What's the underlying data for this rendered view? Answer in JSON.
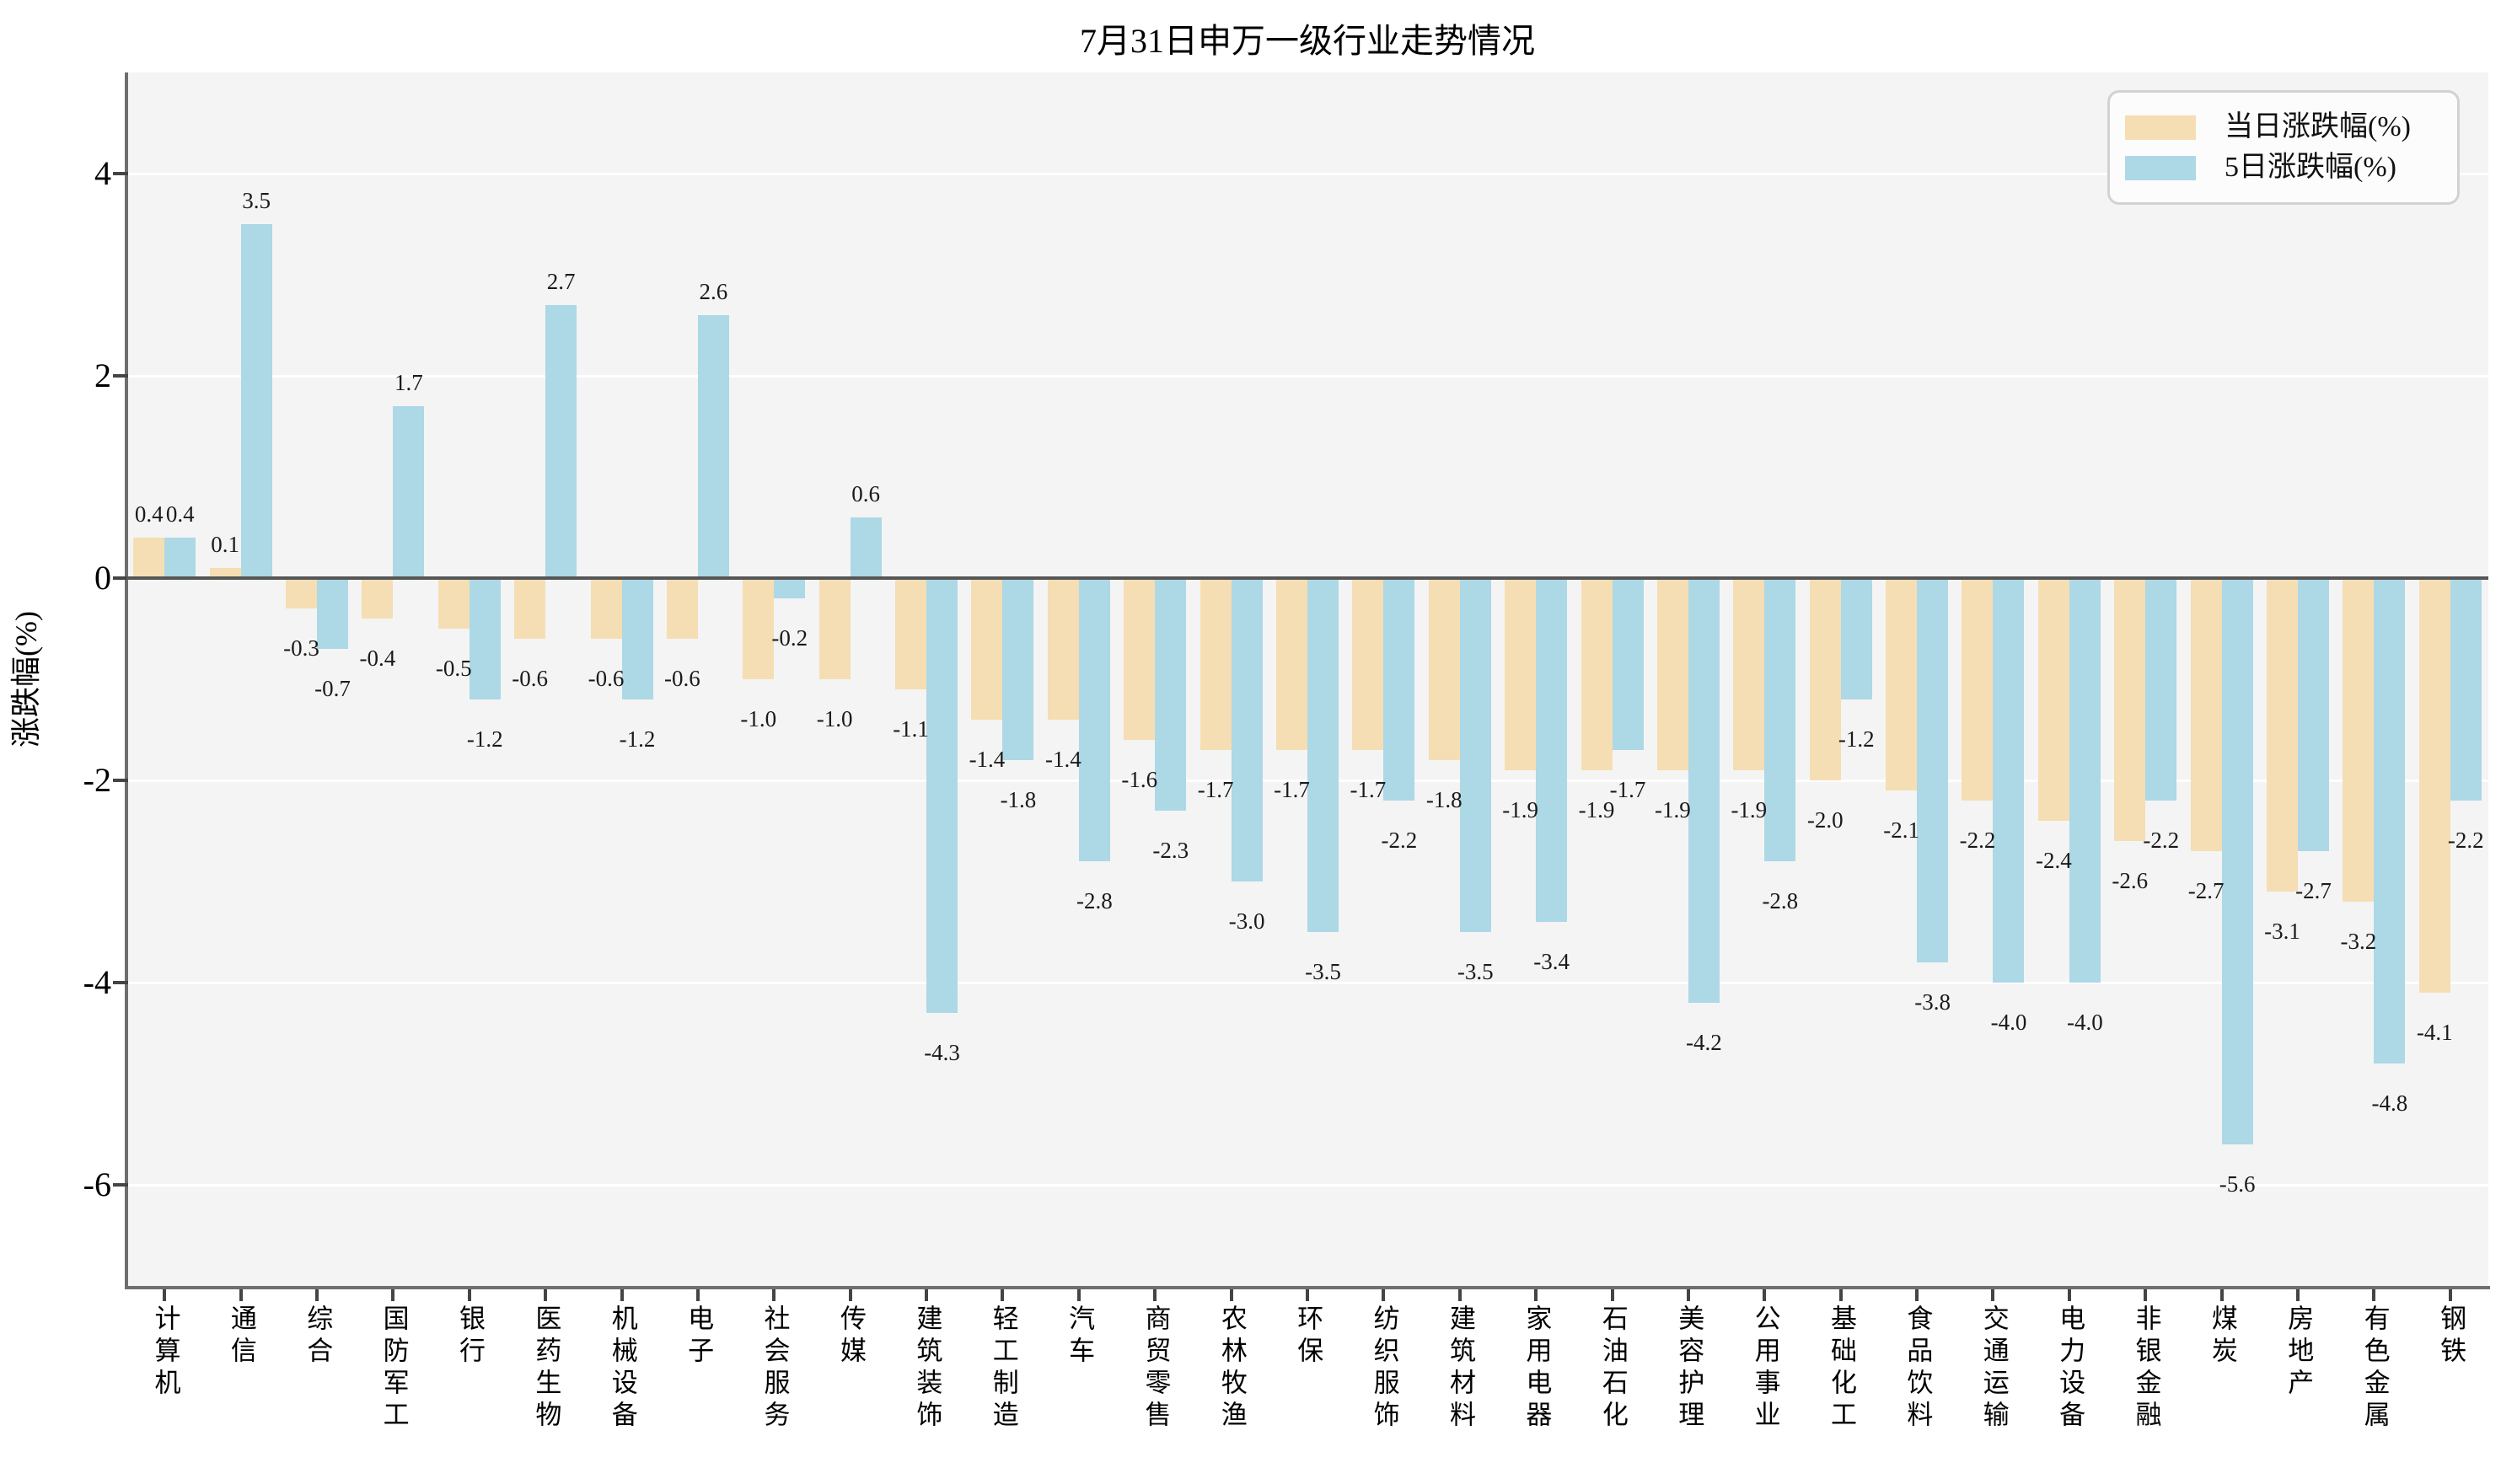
{
  "title": "7月31日申万一级行业走势情况",
  "ylabel": "涨跌幅(%)",
  "legend": {
    "daily_label": "当日涨跌幅(%)",
    "five_day_label": "5日涨跌幅(%)"
  },
  "colors": {
    "daily": "#F5DEB3",
    "five_day": "#ADD8E6",
    "plot_background": "#F4F4F4",
    "gridline": "#FFFFFF",
    "spine": "#6E6E6E",
    "zero_line": "#565656"
  },
  "chart_data": {
    "type": "bar",
    "title": "7月31日申万一级行业走势情况",
    "xlabel": "",
    "ylabel": "涨跌幅(%)",
    "ylim": [
      -7,
      5
    ],
    "y_ticks": [
      4,
      2,
      0,
      -2,
      -4,
      -6
    ],
    "grid": true,
    "legend_position": "upper right",
    "categories": [
      "计算机",
      "通信",
      "综合",
      "国防军工",
      "银行",
      "医药生物",
      "机械设备",
      "电子",
      "社会服务",
      "传媒",
      "建筑装饰",
      "轻工制造",
      "汽车",
      "商贸零售",
      "农林牧渔",
      "环保",
      "纺织服饰",
      "建筑材料",
      "家用电器",
      "石油石化",
      "美容护理",
      "公用事业",
      "基础化工",
      "食品饮料",
      "交通运输",
      "电力设备",
      "非银金融",
      "煤炭",
      "房地产",
      "有色金属",
      "钢铁"
    ],
    "series": [
      {
        "name": "当日涨跌幅(%)",
        "color": "#F5DEB3",
        "values": [
          0.4,
          0.1,
          -0.3,
          -0.4,
          -0.5,
          -0.6,
          -0.6,
          -0.6,
          -1.0,
          -1.0,
          -1.1,
          -1.4,
          -1.4,
          -1.6,
          -1.7,
          -1.7,
          -1.7,
          -1.8,
          -1.9,
          -1.9,
          -1.9,
          -1.9,
          -2.0,
          -2.1,
          -2.2,
          -2.4,
          -2.6,
          -2.7,
          -3.1,
          -3.2,
          -4.1
        ]
      },
      {
        "name": "5日涨跌幅(%)",
        "color": "#ADD8E6",
        "values": [
          0.4,
          3.5,
          -0.7,
          1.7,
          -1.2,
          2.7,
          -1.2,
          2.6,
          -0.2,
          0.6,
          -4.3,
          -1.8,
          -2.8,
          -2.3,
          -3.0,
          -3.5,
          -2.2,
          -3.5,
          -3.4,
          -1.7,
          -4.2,
          -2.8,
          -1.2,
          -3.8,
          -4.0,
          -4.0,
          -2.2,
          -5.6,
          -2.7,
          -4.8,
          -2.2
        ]
      }
    ]
  }
}
